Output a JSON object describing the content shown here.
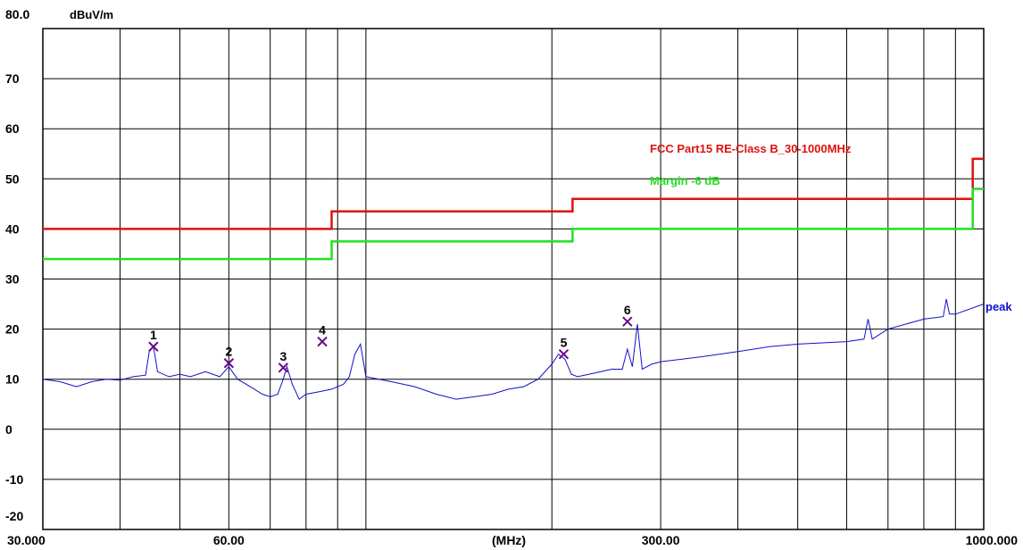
{
  "chart_data": {
    "type": "line",
    "x_scale": "log",
    "y_unit_label": "dBuV/m",
    "x_unit_label": "(MHz)",
    "xlim": [
      30,
      1000
    ],
    "ylim": [
      -20,
      80
    ],
    "x_tick_labels": [
      "30.000",
      "60.00",
      "300.00",
      "1000.000"
    ],
    "x_tick_values": [
      30,
      60,
      300,
      1000
    ],
    "x_gridlines": [
      40,
      50,
      60,
      70,
      80,
      90,
      100,
      200,
      300,
      400,
      500,
      600,
      700,
      800,
      900
    ],
    "y_tick_labels": [
      "80.0",
      "70",
      "60",
      "50",
      "40",
      "30",
      "20",
      "10",
      "0",
      "-10",
      "-20"
    ],
    "y_tick_values": [
      80,
      70,
      60,
      50,
      40,
      30,
      20,
      10,
      0,
      -10,
      -20
    ],
    "grid": true,
    "colors": {
      "limit": "#e01010",
      "margin": "#21e021",
      "peak": "#1010cc",
      "marker": "#6a0a8a",
      "grid": "#000000"
    },
    "series": [
      {
        "name": "FCC Part15 RE-Class B_30-1000MHz",
        "color": "#e01010",
        "x": [
          30,
          88,
          88,
          216,
          216,
          960,
          960,
          1000
        ],
        "y": [
          40,
          40,
          43.5,
          43.5,
          46,
          46,
          54,
          54
        ]
      },
      {
        "name": "Margin -6 dB",
        "color": "#21e021",
        "x": [
          30,
          88,
          88,
          216,
          216,
          960,
          960,
          1000
        ],
        "y": [
          34,
          34,
          37.5,
          37.5,
          40,
          40,
          48,
          48
        ]
      },
      {
        "name": "peak",
        "color": "#1010cc",
        "x": [
          30,
          32,
          34,
          36,
          38,
          40,
          42,
          44,
          44.6,
          45.3,
          46,
          48,
          50,
          52,
          55,
          58,
          60,
          62,
          64,
          66,
          68,
          70,
          72,
          73.5,
          74.5,
          76,
          78,
          80,
          84,
          88,
          92,
          94,
          96,
          98,
          100,
          110,
          120,
          130,
          140,
          150,
          160,
          170,
          180,
          190,
          200,
          205,
          210,
          215,
          220,
          230,
          240,
          250,
          260,
          265,
          270,
          275,
          280,
          290,
          300,
          350,
          400,
          450,
          500,
          600,
          640,
          650,
          660,
          700,
          800,
          860,
          870,
          880,
          900,
          1000
        ],
        "y": [
          10,
          9.5,
          8.5,
          9.5,
          10,
          9.8,
          10.5,
          10.8,
          15.5,
          16.5,
          11.5,
          10.5,
          11,
          10.5,
          11.5,
          10.5,
          12.5,
          10,
          9,
          8,
          7,
          6.5,
          7,
          10,
          12.5,
          9,
          6,
          7,
          7.5,
          8,
          9,
          10.5,
          15,
          17,
          10.5,
          9.5,
          8.5,
          7,
          6,
          6.5,
          7,
          8,
          8.5,
          10,
          13,
          15,
          14,
          11,
          10.5,
          11,
          11.5,
          12,
          12,
          16,
          12.5,
          21,
          12,
          13,
          13.5,
          14.5,
          15.5,
          16.5,
          17,
          17.5,
          18,
          22,
          18,
          20,
          22,
          22.5,
          26,
          23,
          23,
          25
        ]
      }
    ],
    "markers": [
      {
        "label": "1",
        "x": 45.3,
        "y": 16.5
      },
      {
        "label": "2",
        "x": 60.0,
        "y": 13.2
      },
      {
        "label": "3",
        "x": 73.5,
        "y": 12.3
      },
      {
        "label": "4",
        "x": 85.0,
        "y": 17.5
      },
      {
        "label": "5",
        "x": 209.0,
        "y": 15.0
      },
      {
        "label": "6",
        "x": 265.0,
        "y": 21.5
      }
    ]
  }
}
